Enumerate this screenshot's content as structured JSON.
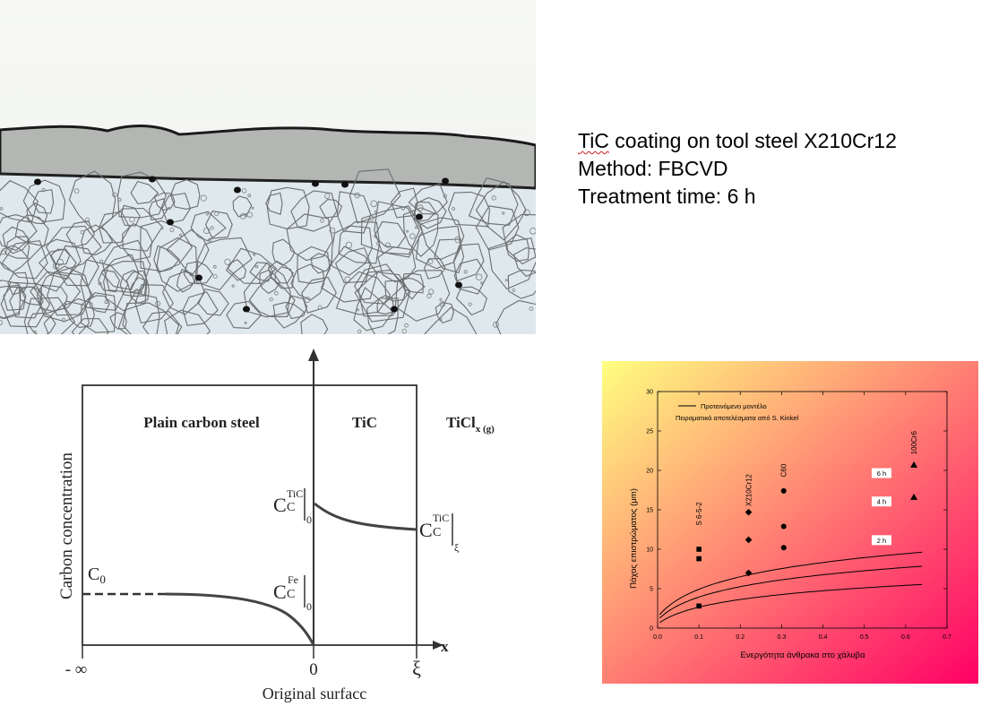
{
  "caption": {
    "line1_abbr": "TiC",
    "line1_rest": " coating on tool steel X210Cr12",
    "line2": "Method: FBCVD",
    "line3": "Treatment time: 6 h"
  },
  "diagram": {
    "region_left": "Plain carbon steel",
    "region_mid": "TiC",
    "region_right_main": "TiCl",
    "region_right_sub": "x (g)",
    "ylabel": "Carbon concentration",
    "c0": "C",
    "c0_sub": "0",
    "ctic0_base": "C",
    "ctic0_sub": "C",
    "ctic0_sup": "TiC",
    "ctic0_bar_sub": "0",
    "cfe0_base": "C",
    "cfe0_sub": "C",
    "cfe0_sup": "Fe",
    "cfe0_bar_sub": "0",
    "cticxi_base": "C",
    "cticxi_sub": "C",
    "cticxi_sup": "TiC",
    "cticxi_bar_sub": "ξ",
    "x_minus_inf": "- ∞",
    "x_zero": "0",
    "x_xi": "ξ",
    "x_axis": "x",
    "xlabel": "Original surfacc"
  },
  "chart_data": {
    "type": "scatter",
    "xlabel": "Ενεργότητα άνθρακα στο χάλυβα",
    "ylabel": "Πάχος επιστρώματος (μm)",
    "xlim": [
      0.0,
      0.7
    ],
    "ylim": [
      0,
      30
    ],
    "xticks": [
      "0.0",
      "0.1",
      "0.2",
      "0.3",
      "0.4",
      "0.5",
      "0.6",
      "0.7"
    ],
    "yticks": [
      "0",
      "5",
      "10",
      "15",
      "20",
      "25",
      "30"
    ],
    "legend": {
      "line_label": "Προτεινόμενο μοντέλο",
      "points_label": "Πειραματικά αποτελέσματα από S. Kinkel"
    },
    "steel_labels": [
      {
        "text": "S 6-5-2",
        "x": 0.1,
        "y": 14.5
      },
      {
        "text": "X210Cr12",
        "x": 0.22,
        "y": 17.5
      },
      {
        "text": "C60",
        "x": 0.305,
        "y": 20.0
      },
      {
        "text": "100Cr6",
        "x": 0.62,
        "y": 23.5
      }
    ],
    "series": [
      {
        "name": "6 h",
        "curve_k": 8.1,
        "label_x": 0.52,
        "label_y": 19.6,
        "points": [
          [
            0.1,
            10.0
          ],
          [
            0.22,
            14.7
          ],
          [
            0.305,
            17.4
          ],
          [
            0.62,
            20.7
          ]
        ],
        "markers": [
          "square",
          "diamond",
          "circle",
          "triangle"
        ]
      },
      {
        "name": "4 h",
        "curve_k": 6.6,
        "label_x": 0.52,
        "label_y": 16.0,
        "points": [
          [
            0.1,
            8.8
          ],
          [
            0.22,
            11.2
          ],
          [
            0.305,
            12.9
          ],
          [
            0.62,
            16.6
          ]
        ],
        "markers": [
          "square",
          "diamond",
          "circle",
          "triangle"
        ]
      },
      {
        "name": "2 h",
        "curve_k": 4.7,
        "label_x": 0.52,
        "label_y": 11.1,
        "points": [
          [
            0.1,
            2.8
          ],
          [
            0.22,
            7.0
          ],
          [
            0.305,
            10.2
          ]
        ],
        "markers": [
          "square",
          "diamond",
          "circle"
        ]
      }
    ],
    "colors": {
      "grad_top_left": "#ffff80",
      "grad_bottom_right": "#ff0066"
    }
  }
}
